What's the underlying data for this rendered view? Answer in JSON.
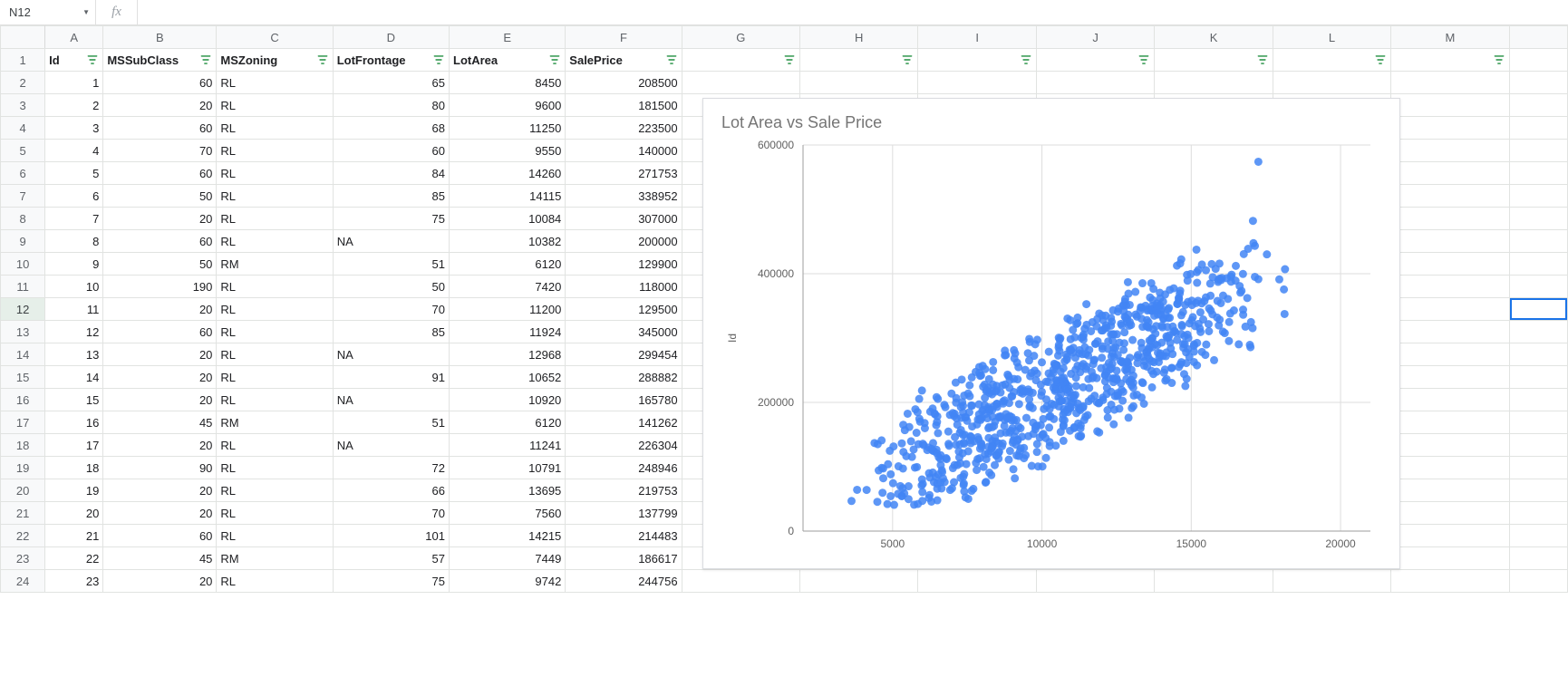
{
  "name_box": {
    "value": "N12",
    "dropdown_glyph": "▼"
  },
  "fx": {
    "label": "fx",
    "value": ""
  },
  "columns": [
    "A",
    "B",
    "C",
    "D",
    "E",
    "F",
    "G",
    "H",
    "I",
    "J",
    "K",
    "L",
    "M"
  ],
  "col_widths_class": [
    "w-A",
    "w-B",
    "w-C",
    "w-D",
    "w-E",
    "w-F",
    "w-G",
    "w-H",
    "w-I",
    "w-J",
    "w-K",
    "w-L",
    "w-M"
  ],
  "header_row": {
    "labels": [
      "Id",
      "MSSubClass",
      "MSZoning",
      "LotFrontage",
      "LotArea",
      "SalePrice",
      "",
      "",
      "",
      "",
      "",
      "",
      ""
    ],
    "filter_color": "#1e8e3e"
  },
  "rows": [
    {
      "n": 1,
      "Id": 1,
      "MSSubClass": 60,
      "MSZoning": "RL",
      "LotFrontage": "65",
      "LotArea": 8450,
      "SalePrice": 208500
    },
    {
      "n": 2,
      "Id": 2,
      "MSSubClass": 20,
      "MSZoning": "RL",
      "LotFrontage": "80",
      "LotArea": 9600,
      "SalePrice": 181500
    },
    {
      "n": 3,
      "Id": 3,
      "MSSubClass": 60,
      "MSZoning": "RL",
      "LotFrontage": "68",
      "LotArea": 11250,
      "SalePrice": 223500
    },
    {
      "n": 4,
      "Id": 4,
      "MSSubClass": 70,
      "MSZoning": "RL",
      "LotFrontage": "60",
      "LotArea": 9550,
      "SalePrice": 140000
    },
    {
      "n": 5,
      "Id": 5,
      "MSSubClass": 60,
      "MSZoning": "RL",
      "LotFrontage": "84",
      "LotArea": 14260,
      "SalePrice": 271753
    },
    {
      "n": 6,
      "Id": 6,
      "MSSubClass": 50,
      "MSZoning": "RL",
      "LotFrontage": "85",
      "LotArea": 14115,
      "SalePrice": 338952
    },
    {
      "n": 7,
      "Id": 7,
      "MSSubClass": 20,
      "MSZoning": "RL",
      "LotFrontage": "75",
      "LotArea": 10084,
      "SalePrice": 307000
    },
    {
      "n": 8,
      "Id": 8,
      "MSSubClass": 60,
      "MSZoning": "RL",
      "LotFrontage": "NA",
      "LotArea": 10382,
      "SalePrice": 200000
    },
    {
      "n": 9,
      "Id": 9,
      "MSSubClass": 50,
      "MSZoning": "RM",
      "LotFrontage": "51",
      "LotArea": 6120,
      "SalePrice": 129900
    },
    {
      "n": 10,
      "Id": 10,
      "MSSubClass": 190,
      "MSZoning": "RL",
      "LotFrontage": "50",
      "LotArea": 7420,
      "SalePrice": 118000
    },
    {
      "n": 11,
      "Id": 11,
      "MSSubClass": 20,
      "MSZoning": "RL",
      "LotFrontage": "70",
      "LotArea": 11200,
      "SalePrice": 129500
    },
    {
      "n": 12,
      "Id": 12,
      "MSSubClass": 60,
      "MSZoning": "RL",
      "LotFrontage": "85",
      "LotArea": 11924,
      "SalePrice": 345000
    },
    {
      "n": 13,
      "Id": 13,
      "MSSubClass": 20,
      "MSZoning": "RL",
      "LotFrontage": "NA",
      "LotArea": 12968,
      "SalePrice": 299454
    },
    {
      "n": 14,
      "Id": 14,
      "MSSubClass": 20,
      "MSZoning": "RL",
      "LotFrontage": "91",
      "LotArea": 10652,
      "SalePrice": 288882
    },
    {
      "n": 15,
      "Id": 15,
      "MSSubClass": 20,
      "MSZoning": "RL",
      "LotFrontage": "NA",
      "LotArea": 10920,
      "SalePrice": 165780
    },
    {
      "n": 16,
      "Id": 16,
      "MSSubClass": 45,
      "MSZoning": "RM",
      "LotFrontage": "51",
      "LotArea": 6120,
      "SalePrice": 141262
    },
    {
      "n": 17,
      "Id": 17,
      "MSSubClass": 20,
      "MSZoning": "RL",
      "LotFrontage": "NA",
      "LotArea": 11241,
      "SalePrice": 226304
    },
    {
      "n": 18,
      "Id": 18,
      "MSSubClass": 90,
      "MSZoning": "RL",
      "LotFrontage": "72",
      "LotArea": 10791,
      "SalePrice": 248946
    },
    {
      "n": 19,
      "Id": 19,
      "MSSubClass": 20,
      "MSZoning": "RL",
      "LotFrontage": "66",
      "LotArea": 13695,
      "SalePrice": 219753
    },
    {
      "n": 20,
      "Id": 20,
      "MSSubClass": 20,
      "MSZoning": "RL",
      "LotFrontage": "70",
      "LotArea": 7560,
      "SalePrice": 137799
    },
    {
      "n": 21,
      "Id": 21,
      "MSSubClass": 60,
      "MSZoning": "RL",
      "LotFrontage": "101",
      "LotArea": 14215,
      "SalePrice": 214483
    },
    {
      "n": 22,
      "Id": 22,
      "MSSubClass": 45,
      "MSZoning": "RM",
      "LotFrontage": "57",
      "LotArea": 7449,
      "SalePrice": 186617
    },
    {
      "n": 23,
      "Id": 23,
      "MSSubClass": 20,
      "MSZoning": "RL",
      "LotFrontage": "75",
      "LotArea": 9742,
      "SalePrice": 244756
    }
  ],
  "active_cell": {
    "row_index": 12,
    "col_letter": "N"
  },
  "chart": {
    "type": "scatter",
    "title": "Lot Area vs Sale Price",
    "title_fontsize": 18,
    "title_color": "#757575",
    "axis_label_fontsize": 12,
    "axis_label_color": "#616161",
    "ylabel": "Id",
    "x": {
      "min": 2000,
      "max": 21000,
      "ticks": [
        5000,
        10000,
        15000,
        20000
      ]
    },
    "y": {
      "min": 0,
      "max": 600000,
      "ticks": [
        0,
        200000,
        400000,
        600000
      ]
    },
    "grid_color": "#dddddd",
    "axis_color": "#9e9e9e",
    "marker_color": "#4285f4",
    "marker_radius": 4.5,
    "marker_opacity": 0.85,
    "background": "#ffffff",
    "n_points": 900,
    "cloud_seed": 7
  }
}
